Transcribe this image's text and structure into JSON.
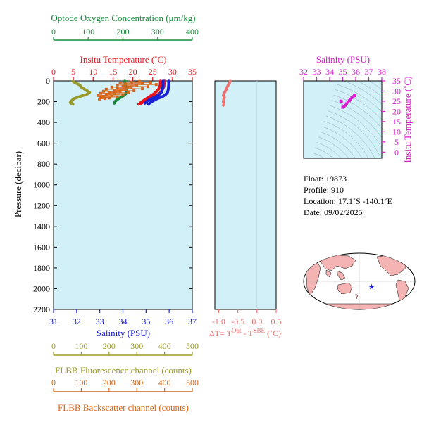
{
  "colors": {
    "oxygen": "#1a8a3a",
    "temperature": "#e8141c",
    "salinity": "#1a22d8",
    "ts_salinity": "#d81ad0",
    "fluorescence": "#9a9a2a",
    "backscatter": "#d8661a",
    "delta_t": "#f07070",
    "panel_bg": "#d2f0f8",
    "land": "#f4b4b4"
  },
  "main_panel": {
    "pressure_axis": {
      "label": "Pressure (decibar)",
      "ticks": [
        "0",
        "200",
        "400",
        "600",
        "800",
        "1000",
        "1200",
        "1400",
        "1600",
        "1800",
        "2000",
        "2200"
      ],
      "range": [
        0,
        2200
      ]
    },
    "oxygen_axis": {
      "label": "Optode Oxygen Concentration (μm/kg)",
      "ticks": [
        "0",
        "100",
        "200",
        "300",
        "400"
      ],
      "range": [
        0,
        400
      ]
    },
    "temperature_axis": {
      "label": "Insitu Temperature (˚C)",
      "ticks": [
        "0",
        "5",
        "10",
        "15",
        "20",
        "25",
        "30",
        "35"
      ],
      "range": [
        0,
        35
      ]
    },
    "salinity_axis": {
      "label": "Salinity (PSU)",
      "ticks": [
        "31",
        "32",
        "33",
        "34",
        "35",
        "36",
        "37"
      ],
      "range": [
        31,
        37
      ]
    },
    "fluorescence_axis": {
      "label": "FLBB Fluorescence channel (counts)",
      "ticks": [
        "0",
        "100",
        "200",
        "300",
        "400",
        "500"
      ],
      "range": [
        0,
        500
      ]
    },
    "backscatter_axis": {
      "label": "FLBB Backscatter channel (counts)",
      "ticks": [
        "0",
        "100",
        "200",
        "300",
        "400",
        "500"
      ],
      "range": [
        0,
        500
      ]
    }
  },
  "delta_panel": {
    "label_prefix": "ΔT= T",
    "sup1": "Opt",
    "mid": " - T",
    "sup2": "SBE",
    "unit": " (˚C)",
    "ticks": [
      "-1.0",
      "-0.5",
      "0.0",
      "0.5"
    ],
    "range": [
      -1.1,
      0.5
    ]
  },
  "ts_panel": {
    "salinity_axis": {
      "label": "Salinity (PSU)",
      "ticks": [
        "32",
        "33",
        "34",
        "35",
        "36",
        "37",
        "38"
      ],
      "range": [
        32,
        38
      ]
    },
    "temperature_axis": {
      "label": "Insitu Temperature (˚C)",
      "ticks": [
        "0",
        "5",
        "10",
        "15",
        "20",
        "25",
        "30",
        "35"
      ],
      "range": [
        -3,
        35
      ]
    }
  },
  "info": {
    "float": "Float:  19873",
    "profile": "Profile:  910",
    "location": "Location:  17.1˚S  -140.1˚E",
    "date": "Date:  09/02/2025"
  },
  "chart_data": [
    {
      "type": "line",
      "name": "profile",
      "series": [
        {
          "name": "Temperature",
          "axis": "temperature",
          "points": [
            [
              28.0,
              2
            ],
            [
              28.0,
              20
            ],
            [
              27.9,
              40
            ],
            [
              27.8,
              60
            ],
            [
              27.5,
              80
            ],
            [
              27.2,
              100
            ],
            [
              26.8,
              120
            ],
            [
              26.0,
              140
            ],
            [
              25.0,
              160
            ],
            [
              23.8,
              180
            ],
            [
              22.7,
              200
            ],
            [
              22.0,
              220
            ]
          ]
        },
        {
          "name": "Temperature (second)",
          "axis": "temperature",
          "points": [
            [
              27.0,
              2
            ],
            [
              26.9,
              40
            ],
            [
              26.5,
              80
            ],
            [
              25.5,
              120
            ],
            [
              24.3,
              150
            ],
            [
              23.5,
              170
            ],
            [
              22.3,
              200
            ],
            [
              21.5,
              225
            ]
          ]
        },
        {
          "name": "Salinity",
          "axis": "salinity",
          "points": [
            [
              35.98,
              2
            ],
            [
              35.98,
              40
            ],
            [
              35.96,
              80
            ],
            [
              35.93,
              110
            ],
            [
              35.85,
              130
            ],
            [
              35.72,
              150
            ],
            [
              35.55,
              165
            ],
            [
              35.4,
              180
            ],
            [
              35.25,
              200
            ],
            [
              35.1,
              225
            ]
          ]
        },
        {
          "name": "Salinity (second)",
          "axis": "salinity",
          "points": [
            [
              35.74,
              2
            ],
            [
              35.73,
              40
            ],
            [
              35.71,
              80
            ],
            [
              35.66,
              110
            ],
            [
              35.55,
              135
            ],
            [
              35.4,
              155
            ],
            [
              35.2,
              175
            ],
            [
              35.05,
              195
            ],
            [
              34.95,
              215
            ]
          ]
        },
        {
          "name": "Oxygen",
          "axis": "oxygen",
          "points": [
            [
              205,
              2
            ],
            [
              206,
              30
            ],
            [
              208,
              60
            ],
            [
              210,
              90
            ],
            [
              212,
              110
            ],
            [
              208,
              125
            ],
            [
              203,
              140
            ],
            [
              196,
              155
            ],
            [
              188,
              170
            ],
            [
              182,
              185
            ],
            [
              177,
              200
            ],
            [
              175,
              215
            ]
          ]
        },
        {
          "name": "Fluorescence",
          "axis": "fluorescence",
          "points": [
            [
              70,
              5
            ],
            [
              80,
              20
            ],
            [
              95,
              40
            ],
            [
              100,
              60
            ],
            [
              115,
              85
            ],
            [
              130,
              110
            ],
            [
              120,
              130
            ],
            [
              95,
              150
            ],
            [
              75,
              170
            ],
            [
              65,
              190
            ],
            [
              60,
              210
            ],
            [
              70,
              225
            ]
          ]
        }
      ]
    },
    {
      "type": "scatter",
      "name": "backscatter",
      "axis": "backscatter",
      "points": [
        [
          310,
          5
        ],
        [
          280,
          10
        ],
        [
          350,
          15
        ],
        [
          240,
          20
        ],
        [
          320,
          25
        ],
        [
          260,
          30
        ],
        [
          370,
          35
        ],
        [
          230,
          40
        ],
        [
          300,
          45
        ],
        [
          250,
          50
        ],
        [
          340,
          55
        ],
        [
          210,
          60
        ],
        [
          280,
          65
        ],
        [
          230,
          70
        ],
        [
          320,
          75
        ],
        [
          190,
          80
        ],
        [
          260,
          85
        ],
        [
          220,
          90
        ],
        [
          290,
          95
        ],
        [
          180,
          100
        ],
        [
          240,
          105
        ],
        [
          200,
          110
        ],
        [
          270,
          115
        ],
        [
          170,
          120
        ],
        [
          220,
          125
        ],
        [
          190,
          130
        ],
        [
          250,
          135
        ],
        [
          160,
          140
        ],
        [
          210,
          145
        ],
        [
          180,
          150
        ],
        [
          230,
          155
        ],
        [
          170,
          160
        ],
        [
          200,
          165
        ],
        [
          185,
          170
        ],
        [
          165,
          175
        ]
      ]
    },
    {
      "type": "line",
      "name": "delta_t",
      "series": [
        {
          "name": "Delta T",
          "points": [
            [
              -0.7,
              2
            ],
            [
              -0.72,
              20
            ],
            [
              -0.75,
              40
            ],
            [
              -0.78,
              60
            ],
            [
              -0.8,
              80
            ],
            [
              -0.83,
              100
            ],
            [
              -0.86,
              120
            ],
            [
              -0.88,
              140
            ],
            [
              -0.85,
              160
            ],
            [
              -0.87,
              180
            ],
            [
              -0.88,
              200
            ],
            [
              -0.86,
              220
            ],
            [
              -0.88,
              235
            ]
          ]
        }
      ]
    },
    {
      "type": "scatter",
      "name": "ts_diagram",
      "points": [
        [
          35.0,
          22.0
        ],
        [
          35.1,
          22.5
        ],
        [
          35.2,
          23.0
        ],
        [
          35.3,
          23.8
        ],
        [
          35.4,
          24.5
        ],
        [
          35.5,
          25.2
        ],
        [
          35.6,
          26.0
        ],
        [
          35.7,
          26.8
        ],
        [
          35.8,
          27.3
        ],
        [
          35.9,
          27.7
        ],
        [
          35.95,
          28.0
        ],
        [
          34.9,
          24.8
        ],
        [
          34.85,
          25.1
        ]
      ]
    }
  ],
  "map": {
    "marker": {
      "lon": -140.1,
      "lat": -17.1
    }
  }
}
